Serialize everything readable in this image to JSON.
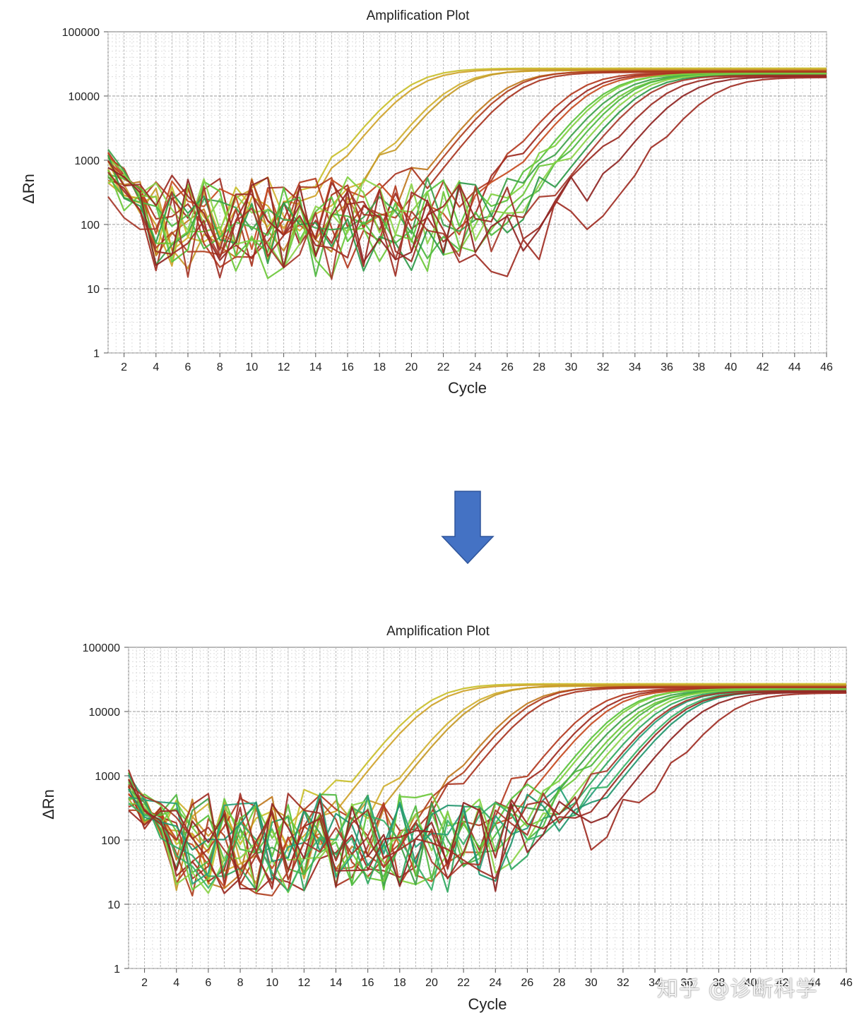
{
  "colors": {
    "arrow": "#4472c4",
    "grid_major": "#b8b8b8",
    "grid_minor": "#dedede",
    "axis": "#555555"
  },
  "arrow_icon": "down-arrow-icon",
  "watermark": "知乎 @诊断科学",
  "chart_data": [
    {
      "type": "line",
      "title": "Amplification Plot",
      "xlabel": "Cycle",
      "ylabel": "ΔRn",
      "xlim": [
        1,
        46
      ],
      "ylim": [
        1,
        100000
      ],
      "yscale": "log",
      "grid": true,
      "x_ticks": [
        2,
        4,
        6,
        8,
        10,
        12,
        14,
        16,
        18,
        20,
        22,
        24,
        26,
        28,
        30,
        32,
        34,
        36,
        38,
        40,
        42,
        44,
        46
      ],
      "y_ticks": [
        1,
        10,
        100,
        1000,
        10000,
        100000
      ],
      "y_tick_labels": [
        "1",
        "10",
        "100",
        "1000",
        "10000",
        "100000"
      ],
      "series_colors": [
        "#c9bf2a",
        "#cfa32a",
        "#c07a20",
        "#b33a1f",
        "#9e2a1f",
        "#58c23a",
        "#7fd040",
        "#3ea24a"
      ],
      "series": [
        {
          "color": "#c9bf2a",
          "ct": 16.5,
          "plateau": 27000,
          "noise_seed": 3
        },
        {
          "color": "#cfa32a",
          "ct": 16.9,
          "plateau": 26000,
          "noise_seed": 7
        },
        {
          "color": "#d0b030",
          "ct": 19.2,
          "plateau": 25000,
          "noise_seed": 11
        },
        {
          "color": "#c59a28",
          "ct": 19.6,
          "plateau": 25500,
          "noise_seed": 13
        },
        {
          "color": "#c07a20",
          "ct": 22.5,
          "plateau": 24000,
          "noise_seed": 17
        },
        {
          "color": "#b04020",
          "ct": 22.9,
          "plateau": 24500,
          "noise_seed": 19
        },
        {
          "color": "#a83420",
          "ct": 23.4,
          "plateau": 23500,
          "noise_seed": 23
        },
        {
          "color": "#b33a1f",
          "ct": 27.0,
          "plateau": 23000,
          "noise_seed": 29
        },
        {
          "color": "#9e2a1f",
          "ct": 27.6,
          "plateau": 22500,
          "noise_seed": 31
        },
        {
          "color": "#c54a1f",
          "ct": 28.0,
          "plateau": 22000,
          "noise_seed": 37
        },
        {
          "color": "#58c23a",
          "ct": 28.9,
          "plateau": 22000,
          "noise_seed": 41
        },
        {
          "color": "#7fd040",
          "ct": 29.2,
          "plateau": 22500,
          "noise_seed": 43
        },
        {
          "color": "#3ea24a",
          "ct": 29.6,
          "plateau": 21500,
          "noise_seed": 47
        },
        {
          "color": "#6cc83a",
          "ct": 30.0,
          "plateau": 21000,
          "noise_seed": 53
        },
        {
          "color": "#4fb840",
          "ct": 30.4,
          "plateau": 22000,
          "noise_seed": 59
        },
        {
          "color": "#8ad248",
          "ct": 30.8,
          "plateau": 21800,
          "noise_seed": 61
        },
        {
          "color": "#2f9a4a",
          "ct": 31.2,
          "plateau": 21200,
          "noise_seed": 67
        },
        {
          "color": "#a6382a",
          "ct": 31.6,
          "plateau": 21000,
          "noise_seed": 71
        },
        {
          "color": "#9a2a22",
          "ct": 32.6,
          "plateau": 20500,
          "noise_seed": 73
        },
        {
          "color": "#8e2422",
          "ct": 33.8,
          "plateau": 20000,
          "noise_seed": 79
        },
        {
          "color": "#a02e24",
          "ct": 35.5,
          "plateau": 19500,
          "noise_seed": 83
        }
      ]
    },
    {
      "type": "line",
      "title": "Amplification Plot",
      "xlabel": "Cycle",
      "ylabel": "ΔRn",
      "xlim": [
        1,
        46
      ],
      "ylim": [
        1,
        100000
      ],
      "yscale": "log",
      "grid": true,
      "x_ticks": [
        2,
        4,
        6,
        8,
        10,
        12,
        14,
        16,
        18,
        20,
        22,
        24,
        26,
        28,
        30,
        32,
        34,
        36,
        38,
        40,
        42,
        44,
        46
      ],
      "y_ticks": [
        1,
        10,
        100,
        1000,
        10000,
        100000
      ],
      "y_tick_labels": [
        "1",
        "10",
        "100",
        "1000",
        "10000",
        "100000"
      ],
      "series_colors": [
        "#c9bf2a",
        "#cfa32a",
        "#c07a20",
        "#b33a1f",
        "#9e2a1f",
        "#58c23a",
        "#7fd040",
        "#2fa860"
      ],
      "series": [
        {
          "color": "#c9bf2a",
          "ct": 16.5,
          "plateau": 27000,
          "noise_seed": 3
        },
        {
          "color": "#cfa32a",
          "ct": 16.9,
          "plateau": 26000,
          "noise_seed": 7
        },
        {
          "color": "#d0b030",
          "ct": 19.2,
          "plateau": 25000,
          "noise_seed": 11
        },
        {
          "color": "#c59a28",
          "ct": 19.6,
          "plateau": 25500,
          "noise_seed": 13
        },
        {
          "color": "#c07a20",
          "ct": 22.5,
          "plateau": 24000,
          "noise_seed": 17
        },
        {
          "color": "#b04020",
          "ct": 22.9,
          "plateau": 24500,
          "noise_seed": 19
        },
        {
          "color": "#a83420",
          "ct": 23.4,
          "plateau": 23500,
          "noise_seed": 23
        },
        {
          "color": "#b33a1f",
          "ct": 27.0,
          "plateau": 23000,
          "noise_seed": 29
        },
        {
          "color": "#9e2a1f",
          "ct": 27.6,
          "plateau": 22500,
          "noise_seed": 31
        },
        {
          "color": "#c54a1f",
          "ct": 28.0,
          "plateau": 22000,
          "noise_seed": 37
        },
        {
          "color": "#58c23a",
          "ct": 28.9,
          "plateau": 22000,
          "noise_seed": 41
        },
        {
          "color": "#7fd040",
          "ct": 29.2,
          "plateau": 22500,
          "noise_seed": 43
        },
        {
          "color": "#3ea24a",
          "ct": 29.6,
          "plateau": 21500,
          "noise_seed": 47
        },
        {
          "color": "#6cc83a",
          "ct": 30.0,
          "plateau": 21000,
          "noise_seed": 53
        },
        {
          "color": "#4fb840",
          "ct": 30.4,
          "plateau": 22000,
          "noise_seed": 59
        },
        {
          "color": "#8ad248",
          "ct": 30.8,
          "plateau": 21800,
          "noise_seed": 61
        },
        {
          "color": "#2fa860",
          "ct": 31.2,
          "plateau": 21200,
          "noise_seed": 67
        },
        {
          "color": "#27a07a",
          "ct": 31.8,
          "plateau": 21000,
          "noise_seed": 89
        },
        {
          "color": "#38b268",
          "ct": 32.4,
          "plateau": 20800,
          "noise_seed": 97
        },
        {
          "color": "#22966e",
          "ct": 32.9,
          "plateau": 20500,
          "noise_seed": 101
        },
        {
          "color": "#a6382a",
          "ct": 31.6,
          "plateau": 21000,
          "noise_seed": 71
        },
        {
          "color": "#9a2a22",
          "ct": 32.6,
          "plateau": 20500,
          "noise_seed": 73
        },
        {
          "color": "#8e2422",
          "ct": 33.8,
          "plateau": 20000,
          "noise_seed": 79
        },
        {
          "color": "#a02e24",
          "ct": 35.5,
          "plateau": 19500,
          "noise_seed": 83
        }
      ]
    }
  ]
}
